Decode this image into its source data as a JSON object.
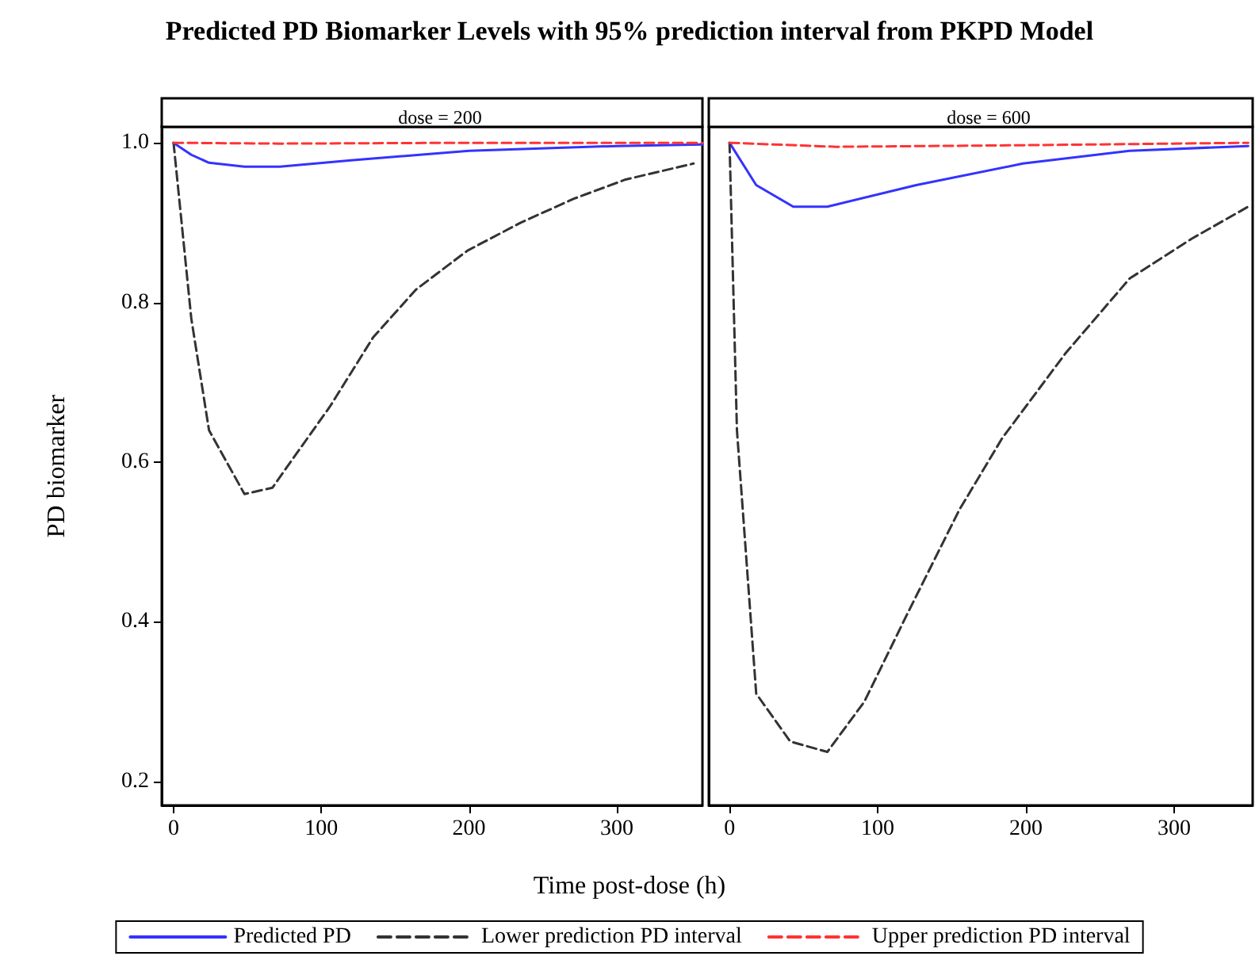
{
  "chart_data": [
    {
      "type": "line",
      "title": "Predicted PD Biomarker Levels with 95% prediction interval from PKPD Model",
      "subtitle": "dose = 200",
      "xlabel": "Time post-dose (h)",
      "ylabel": "PD biomarker",
      "xlim": [
        -8,
        358
      ],
      "xticks": [
        0,
        100,
        200,
        300
      ],
      "ylim": [
        0.17,
        1.02
      ],
      "yticks": [
        0.2,
        0.4,
        0.6,
        0.8,
        {
          "value": 1,
          "label": "1.0"
        }
      ],
      "grid": false,
      "legend": "bottom",
      "marker": "none",
      "series": [
        {
          "name": "Predicted PD",
          "color": "#3333ff",
          "line_style": "solid",
          "x": [
            0,
            12,
            24,
            48,
            72,
            120,
            200,
            300,
            358
          ],
          "values": [
            1,
            0.985,
            0.975,
            0.97,
            0.97,
            0.978,
            0.99,
            0.996,
            0.998
          ]
        },
        {
          "name": "Lower prediction PD interval",
          "color": "#333333",
          "line_style": "dashed",
          "x": [
            0,
            12,
            24,
            48,
            67,
            73,
            106,
            135,
            164,
            199,
            235,
            271,
            306,
            352
          ],
          "values": [
            1,
            0.78,
            0.64,
            0.56,
            0.568,
            0.584,
            0.67,
            0.756,
            0.816,
            0.865,
            0.9,
            0.93,
            0.954,
            0.974
          ]
        },
        {
          "name": "Upper prediction PD interval",
          "color": "#ff3333",
          "line_style": "dashed",
          "x": [
            0,
            72,
            200,
            358
          ],
          "values": [
            1,
            0.999,
            1,
            1
          ]
        }
      ]
    },
    {
      "type": "line",
      "subtitle": "dose = 600",
      "tick_labels": "x",
      "xlim": [
        -14,
        353
      ],
      "xticks": [
        0,
        100,
        200,
        300
      ],
      "ylim": [
        0.17,
        1.02
      ],
      "grid": false,
      "marker": "none",
      "series": [
        {
          "color": "#3333ff",
          "line_style": "solid",
          "x": [
            0,
            18,
            43,
            66,
            126,
            198,
            270,
            350
          ],
          "values": [
            1,
            0.947,
            0.92,
            0.92,
            0.947,
            0.974,
            0.99,
            0.996
          ]
        },
        {
          "color": "#333333",
          "line_style": "dashed",
          "x": [
            0,
            5,
            18,
            41,
            66,
            91,
            120,
            155,
            184,
            227,
            270,
            312,
            350
          ],
          "values": [
            1,
            0.64,
            0.31,
            0.25,
            0.237,
            0.3,
            0.41,
            0.54,
            0.63,
            0.737,
            0.83,
            0.88,
            0.92
          ]
        },
        {
          "color": "#ff3333",
          "line_style": "dashed",
          "x": [
            0,
            72,
            200,
            350
          ],
          "values": [
            1,
            0.995,
            0.997,
            1
          ]
        }
      ]
    }
  ]
}
